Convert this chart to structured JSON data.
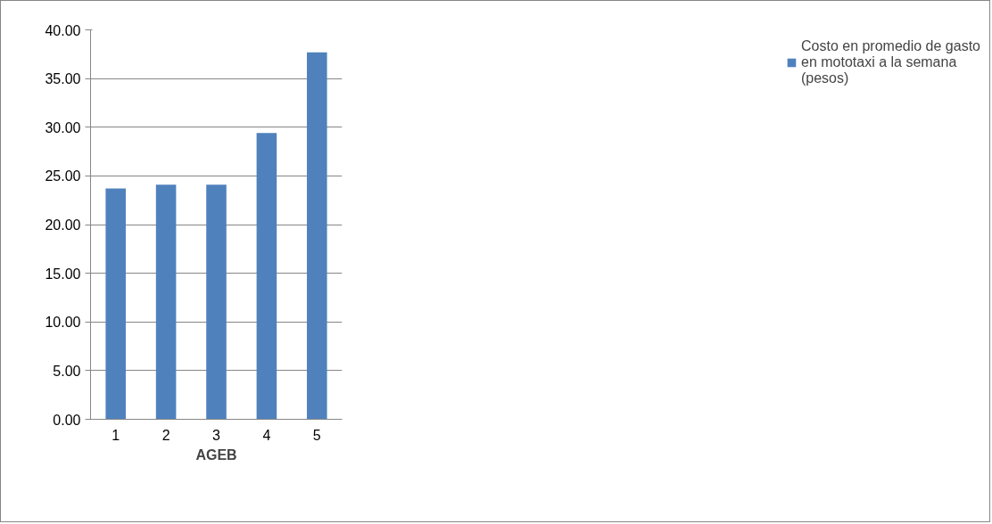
{
  "chart_data": {
    "type": "bar",
    "xlabel": "AGEB",
    "categories": [
      "1",
      "2",
      "3",
      "4",
      "5"
    ],
    "series": [
      {
        "name": "Costo en promedio de gasto en mototaxi a la semana (pesos)",
        "color": "#4f81bd",
        "values": [
          23.7,
          24.1,
          24.1,
          29.4,
          37.7
        ]
      }
    ],
    "ylim": [
      0,
      40
    ],
    "yticks": [
      {
        "value": 0,
        "label": "0.00"
      },
      {
        "value": 5,
        "label": "5.00"
      },
      {
        "value": 10,
        "label": "10.00"
      },
      {
        "value": 15,
        "label": "15.00"
      },
      {
        "value": 20,
        "label": "20.00"
      },
      {
        "value": 25,
        "label": "25.00"
      },
      {
        "value": 30,
        "label": "30.00"
      },
      {
        "value": 35,
        "label": "35.00"
      },
      {
        "value": 40,
        "label": "40.00"
      }
    ],
    "grid": "y",
    "legend": "right"
  }
}
